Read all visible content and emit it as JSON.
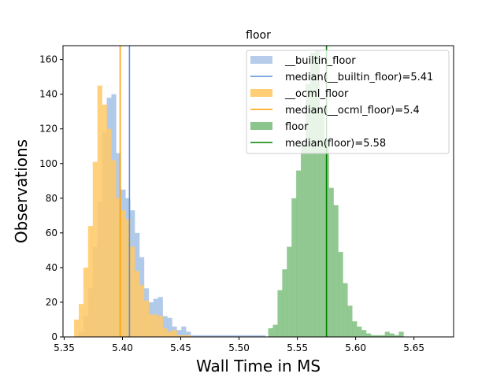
{
  "chart_data": {
    "type": "histogram",
    "title": "floor",
    "xlabel": "Wall Time in MS",
    "ylabel": "Observations",
    "xlim": [
      5.349,
      5.684
    ],
    "ylim": [
      0,
      168
    ],
    "xticks": [
      5.35,
      5.4,
      5.45,
      5.5,
      5.55,
      5.6,
      5.65
    ],
    "xtick_labels": [
      "5.35",
      "5.40",
      "5.45",
      "5.50",
      "5.55",
      "5.60",
      "5.65"
    ],
    "yticks": [
      0,
      20,
      40,
      60,
      80,
      100,
      120,
      140,
      160
    ],
    "ytick_labels": [
      "0",
      "20",
      "40",
      "60",
      "80",
      "100",
      "120",
      "140",
      "160"
    ],
    "grid": false,
    "legend_position": "top-right",
    "series": [
      {
        "name": "__builtin_floor",
        "color": "#aec7e8",
        "median": 5.406,
        "bin_start": 5.3625,
        "bin_width": 0.004,
        "counts": [
          3,
          12,
          28,
          52,
          78,
          118,
          138,
          140,
          106,
          85,
          80,
          73,
          60,
          46,
          28,
          20,
          22,
          23,
          12,
          11,
          6,
          4,
          6,
          3,
          1,
          1,
          1,
          1,
          1,
          1,
          1,
          1,
          1,
          1,
          1,
          1,
          1,
          1,
          1,
          1
        ]
      },
      {
        "name": "median(__builtin_floor)=5.41",
        "role": "median-line",
        "value": 5.406,
        "color": "#5b8fd6"
      },
      {
        "name": "__ocml_floor",
        "color": "#ffc966",
        "median": 5.398,
        "bin_start": 5.3585,
        "bin_width": 0.004,
        "counts": [
          10,
          19,
          40,
          64,
          101,
          145,
          134,
          120,
          102,
          80,
          73,
          68,
          52,
          38,
          30,
          21,
          13,
          13,
          12,
          5,
          3,
          4,
          1,
          1,
          1
        ]
      },
      {
        "name": "median(__ocml_floor)=5.4",
        "role": "median-line",
        "value": 5.398,
        "color": "#ff9f00"
      },
      {
        "name": "floor",
        "color": "#7fbf7f",
        "median": 5.575,
        "bin_start": 5.525,
        "bin_width": 0.004,
        "counts": [
          5,
          7,
          27,
          39,
          52,
          80,
          96,
          112,
          146,
          164,
          165,
          133,
          112,
          86,
          76,
          49,
          31,
          18,
          9,
          6,
          4,
          2,
          1,
          1,
          1,
          3,
          2,
          1,
          3
        ]
      },
      {
        "name": "median(floor)=5.58",
        "role": "median-line",
        "value": 5.575,
        "color": "#008000"
      }
    ]
  }
}
